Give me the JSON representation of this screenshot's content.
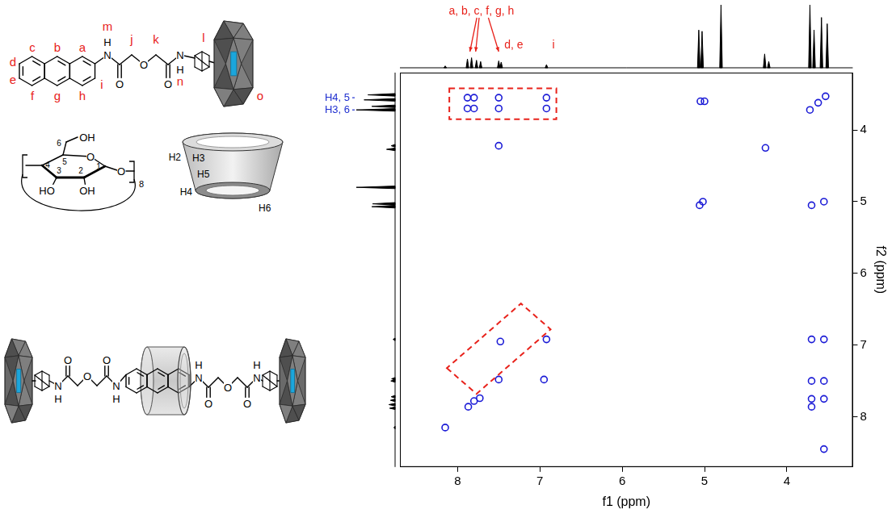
{
  "chart_data": {
    "type": "scatter",
    "x_label": "f1 (ppm)",
    "y_label": "f2 (ppm)",
    "xlim": [
      8.7,
      3.2
    ],
    "ylim": [
      8.7,
      3.2
    ],
    "xticks": [
      8,
      7,
      6,
      5,
      4
    ],
    "yticks": [
      4,
      5,
      6,
      7,
      8
    ],
    "grid": false,
    "series": [
      {
        "color": "#1a1ad6",
        "marker": "circle",
        "x": [
          8.15,
          7.87,
          7.8,
          7.73,
          7.5,
          6.92,
          5.06,
          5.02,
          4.26,
          3.72,
          3.62,
          3.53,
          7.88,
          7.8,
          7.5,
          6.92,
          7.88,
          7.8,
          7.5,
          6.92,
          7.5,
          7.48,
          6.95,
          3.7,
          3.55,
          3.7,
          3.55,
          3.7,
          3.55,
          3.7,
          3.55,
          5.05,
          5.0,
          3.7,
          3.55
        ],
        "values": [
          8.15,
          7.86,
          7.78,
          7.74,
          7.48,
          6.92,
          5.05,
          5.0,
          4.25,
          3.72,
          3.62,
          3.53,
          3.55,
          3.55,
          3.55,
          3.55,
          3.7,
          3.7,
          3.7,
          3.7,
          4.22,
          6.95,
          7.48,
          6.92,
          6.92,
          7.5,
          7.5,
          7.75,
          7.75,
          7.86,
          8.45,
          3.6,
          3.6,
          5.05,
          5.0
        ]
      }
    ],
    "highlights": [
      {
        "color": "#e8221b",
        "line_style": "dashed",
        "f1": [
          8.1,
          6.8,
          6.8,
          8.1
        ],
        "f2": [
          3.42,
          3.42,
          3.85,
          3.85
        ]
      },
      {
        "color": "#e8221b",
        "line_style": "dashed",
        "f1": [
          8.13,
          7.77,
          6.87,
          7.23
        ],
        "f2": [
          7.32,
          7.68,
          6.78,
          6.42
        ]
      }
    ],
    "projections": {
      "f1": {
        "color": "#000000",
        "ppm": [
          8.15,
          7.88,
          7.83,
          7.77,
          7.72,
          7.5,
          7.47,
          6.92,
          5.07,
          5.03,
          4.8,
          4.27,
          4.22,
          3.72,
          3.67,
          3.58,
          3.51
        ],
        "intensity": [
          3,
          14,
          16,
          12,
          10,
          11,
          9,
          5,
          60,
          58,
          100,
          22,
          10,
          100,
          60,
          80,
          70
        ]
      },
      "f2": {
        "color": "#000000",
        "ppm": [
          8.15,
          7.88,
          7.83,
          7.77,
          7.72,
          7.5,
          7.47,
          6.92,
          5.07,
          5.03,
          4.8,
          4.27,
          4.22,
          3.72,
          3.67,
          3.58,
          3.51
        ],
        "intensity": [
          3,
          14,
          16,
          12,
          10,
          11,
          9,
          5,
          60,
          58,
          100,
          22,
          10,
          100,
          60,
          80,
          70
        ]
      }
    },
    "projection_labels": {
      "f1": [
        {
          "text": "a, b, c, f, g, h",
          "ppm": [
            7.85,
            7.78,
            7.5
          ],
          "color": "#e8221b"
        },
        {
          "text": "d, e",
          "ppm": [
            7.5
          ],
          "color": "#e8221b"
        },
        {
          "text": "i",
          "ppm": [
            6.92
          ],
          "color": "#e8221b"
        }
      ],
      "f2": [
        {
          "text": "H4, 5",
          "ppm": [
            3.55
          ],
          "color": "#1f2fd0"
        },
        {
          "text": "H3, 6",
          "ppm": [
            3.72
          ],
          "color": "#1f2fd0"
        }
      ]
    }
  },
  "structures": {
    "guest": {
      "color": "#e8221b",
      "site_labels": [
        "a",
        "b",
        "c",
        "d",
        "e",
        "f",
        "g",
        "h",
        "i",
        "m",
        "j",
        "k",
        "n",
        "l",
        "o"
      ],
      "atoms": [
        "N",
        "H",
        "O",
        "O",
        "O",
        "N",
        "H"
      ]
    },
    "cd_unit": {
      "atoms": [
        "OH",
        "O",
        "O",
        "HO",
        "OH"
      ],
      "numbers": [
        1,
        2,
        3,
        4,
        5,
        6
      ],
      "repeat": 8
    },
    "cavity": {
      "labels": [
        "H2",
        "H3",
        "H5",
        "H4",
        "H6"
      ]
    },
    "rotaxane": {
      "left_atoms": [
        "N",
        "H",
        "O",
        "O",
        "O",
        "N",
        "H"
      ],
      "right_atoms": [
        "N",
        "H",
        "O",
        "O",
        "O",
        "N",
        "H"
      ]
    }
  }
}
